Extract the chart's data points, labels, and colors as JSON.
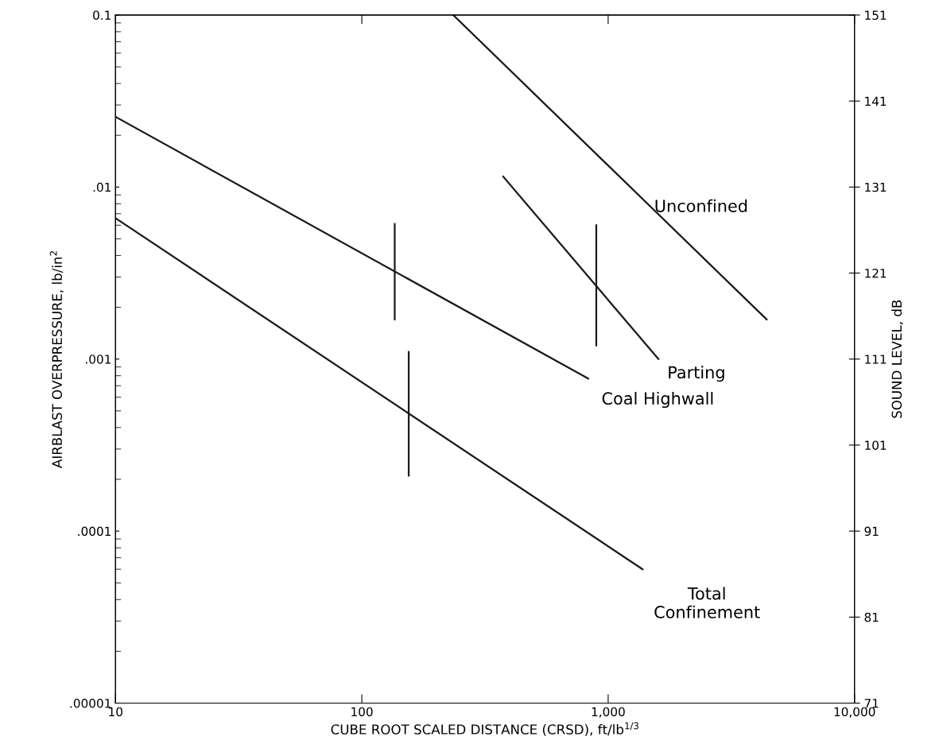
{
  "chart_data": {
    "type": "line",
    "xlabel": "CUBE ROOT SCALED DISTANCE (CRSD), ft/lb$^{1/3}$",
    "ylabel": "AIRBLAST OVERPRESSURE, lb/in$^{2}$",
    "y2label": "SOUND LEVEL, dB",
    "log": "xy",
    "marker": "none",
    "line_style": "solid",
    "grid": false,
    "legend": false,
    "xlim": [
      10,
      10000
    ],
    "xticks": [
      10,
      100,
      {
        "value": 1000,
        "label": "1,000"
      },
      {
        "value": 10000,
        "label": "10,000"
      }
    ],
    "ylim": [
      1e-05,
      0.1
    ],
    "yticks": [
      {
        "value": 0.1,
        "label": "0.1"
      },
      {
        "value": 0.01,
        "label": ".01"
      },
      {
        "value": 0.001,
        "label": ".001"
      },
      {
        "value": 0.0001,
        "label": ".0001"
      },
      {
        "value": 1e-05,
        "label": ".00001"
      }
    ],
    "y2lim": [
      71,
      151
    ],
    "y2ticks": [
      71,
      81,
      91,
      101,
      111,
      121,
      131,
      141,
      151
    ],
    "series": [
      {
        "name": "Unconfined",
        "color": "#1a1a1a",
        "x": [
          235,
          4400
        ],
        "values": [
          0.1,
          0.0017
        ]
      },
      {
        "name": "Parting",
        "color": "#1a1a1a",
        "x": [
          375,
          1600
        ],
        "values": [
          0.0115,
          0.001
        ]
      },
      {
        "name": "Coal Highwall",
        "color": "#1a1a1a",
        "x": [
          10,
          830
        ],
        "values": [
          0.0256,
          0.00077
        ]
      },
      {
        "name": "Total\nConfinement",
        "color": "#1a1a1a",
        "x": [
          10,
          1380
        ],
        "values": [
          0.0066,
          6e-05
        ]
      },
      {
        "color": "#1a1a1a",
        "x": [
          136,
          136
        ],
        "values": [
          0.0017,
          0.0061
        ]
      },
      {
        "color": "#1a1a1a",
        "x": [
          155,
          155
        ],
        "values": [
          0.00021,
          0.0011
        ]
      },
      {
        "color": "#1a1a1a",
        "x": [
          895,
          895
        ],
        "values": [
          0.0012,
          0.006
        ]
      }
    ]
  }
}
